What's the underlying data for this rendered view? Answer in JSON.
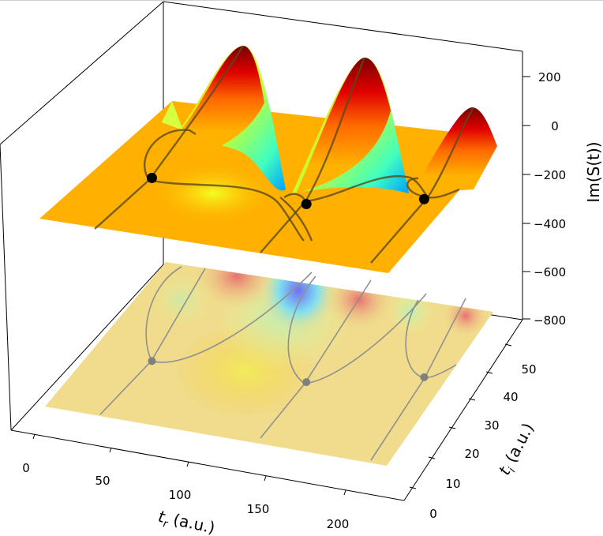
{
  "chart_data": {
    "type": "surface",
    "title": "",
    "xlabel": {
      "main": "t",
      "sub": "r",
      "unit": " (a.u.)"
    },
    "ylabel": {
      "main": "t",
      "sub": "i",
      "unit": " (a.u.)"
    },
    "zlabel": "Im(S(t))",
    "xlim": [
      -15,
      238
    ],
    "ylim": [
      -6,
      56
    ],
    "zlim": [
      -800,
      300
    ],
    "x_ticks": [
      "0",
      "50",
      "100",
      "150",
      "200"
    ],
    "y_ticks": [
      "0",
      "10",
      "20",
      "30",
      "40",
      "50"
    ],
    "z_ticks": [
      "200",
      "0",
      "−200",
      "−400",
      "−600",
      "−800"
    ],
    "colormap": "jet",
    "projection_contour_offset": -800,
    "surface_peaks_tr": [
      70,
      150,
      215
    ],
    "saddle_points": [
      {
        "tr": 40,
        "ti": 23,
        "z": -75
      },
      {
        "tr": 137,
        "ti": 25,
        "z": -95
      },
      {
        "tr": 203,
        "ti": 33,
        "z": -95
      }
    ],
    "grid": false,
    "colors": {
      "surface_high": "#8b0000",
      "surface_mid": "#ffa500",
      "surface_low": "#00bfff",
      "floor": "#f0dc8c",
      "saddle_marker": "#000000",
      "floor_marker": "#808080"
    }
  }
}
